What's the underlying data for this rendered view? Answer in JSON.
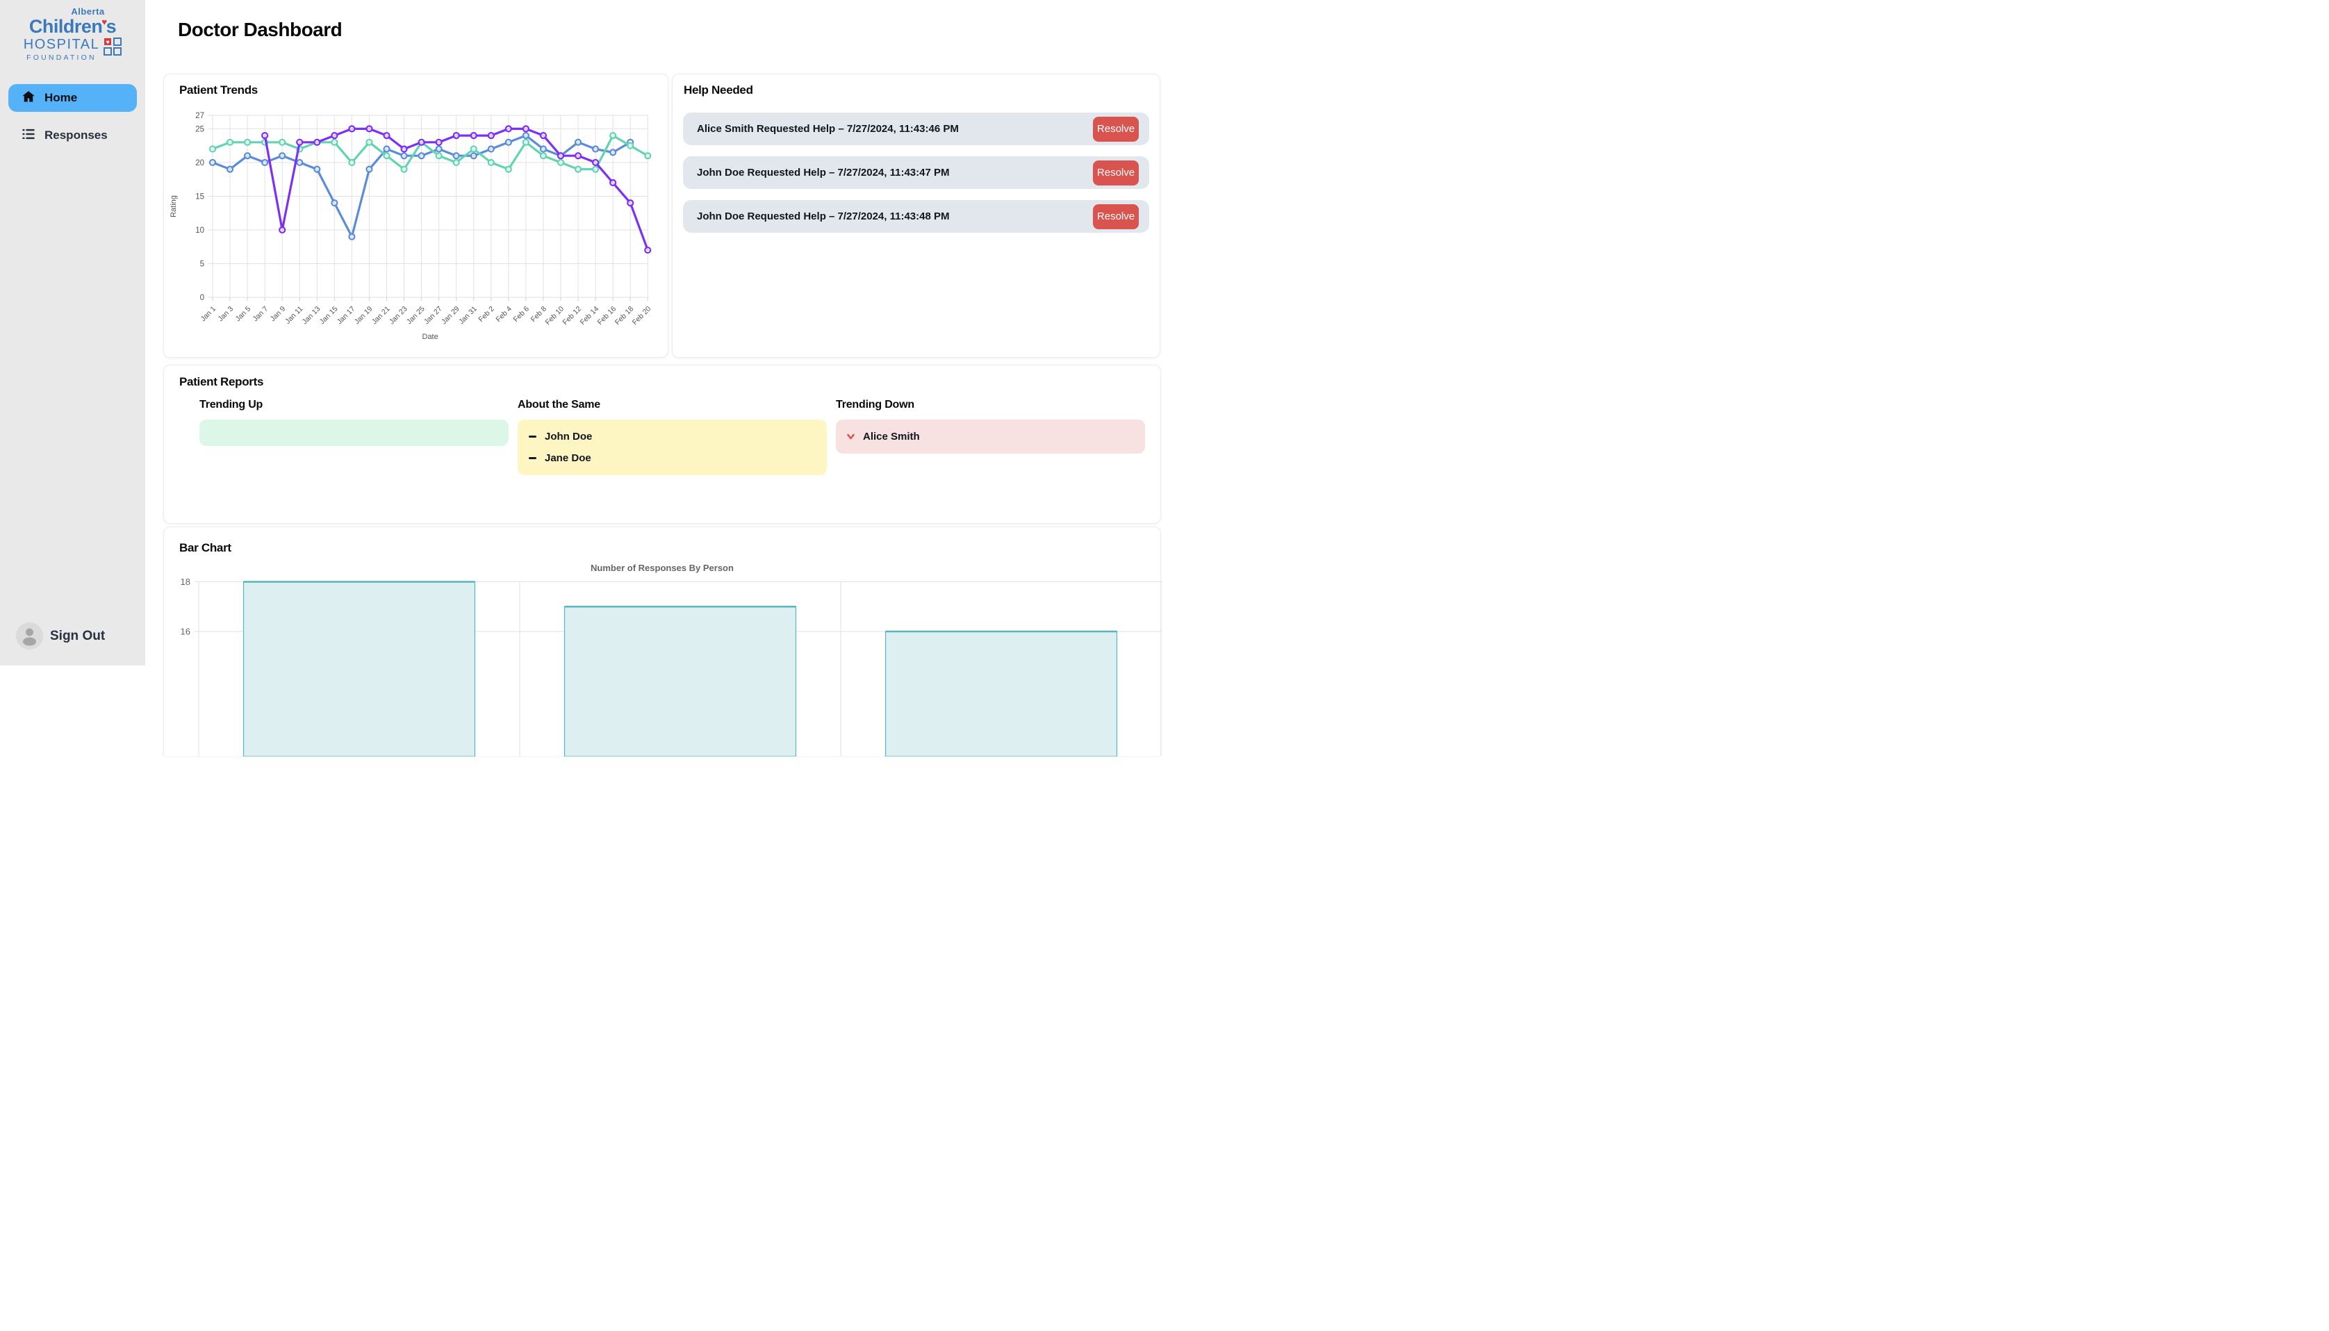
{
  "page": {
    "title": "Doctor Dashboard"
  },
  "sidebar": {
    "logo": {
      "alberta": "Alberta",
      "childrens": "Children's",
      "hospital": "HOSPITAL",
      "foundation": "FOUNDATION"
    },
    "items": [
      {
        "label": "Home",
        "icon": "home-icon",
        "active": true
      },
      {
        "label": "Responses",
        "icon": "list-icon",
        "active": false
      }
    ],
    "sign_out_label": "Sign Out"
  },
  "trends": {
    "heading": "Patient Trends"
  },
  "help": {
    "heading": "Help Needed",
    "resolve_label": "Resolve",
    "requests": [
      {
        "text": "Alice Smith Requested Help – 7/27/2024, 11:43:46 PM"
      },
      {
        "text": "John Doe Requested Help – 7/27/2024, 11:43:47 PM"
      },
      {
        "text": "John Doe Requested Help – 7/27/2024, 11:43:48 PM"
      }
    ]
  },
  "reports": {
    "heading": "Patient Reports",
    "columns": [
      {
        "title": "Trending Up",
        "patients": []
      },
      {
        "title": "About the Same",
        "patients": [
          "John Doe",
          "Jane Doe"
        ]
      },
      {
        "title": "Trending Down",
        "patients": [
          "Alice Smith"
        ]
      }
    ]
  },
  "bar_section": {
    "heading": "Bar Chart"
  },
  "chart_data": [
    {
      "type": "line",
      "title": "Patient Trends",
      "xlabel": "Date",
      "ylabel": "Rating",
      "ylim": [
        0,
        27
      ],
      "yticks": [
        0,
        5,
        10,
        15,
        20,
        25,
        27
      ],
      "grid": true,
      "legend": "none",
      "x": [
        "Jan 1",
        "Jan 3",
        "Jan 5",
        "Jan 7",
        "Jan 9",
        "Jan 11",
        "Jan 13",
        "Jan 15",
        "Jan 17",
        "Jan 19",
        "Jan 21",
        "Jan 23",
        "Jan 25",
        "Jan 27",
        "Jan 29",
        "Jan 31",
        "Feb 2",
        "Feb 4",
        "Feb 6",
        "Feb 8",
        "Feb 10",
        "Feb 12",
        "Feb 14",
        "Feb 16",
        "Feb 18",
        "Feb 20"
      ],
      "series": [
        {
          "name": "series-blue",
          "color": "#5b8cd9",
          "values": [
            20,
            19,
            21,
            20,
            21,
            20,
            19,
            14,
            9,
            19,
            22,
            21,
            21,
            22,
            21,
            21,
            22,
            23,
            24,
            22,
            21,
            23,
            22,
            21.5,
            23,
            null
          ]
        },
        {
          "name": "series-green",
          "color": "#63d4b1",
          "values": [
            22,
            23,
            23,
            23,
            23,
            22,
            23,
            23,
            20,
            23,
            21,
            19,
            23,
            21,
            20,
            22,
            20,
            19,
            23,
            21,
            20,
            19,
            19,
            24,
            22.5,
            21
          ]
        },
        {
          "name": "series-purple",
          "color": "#7b2ff7",
          "values": [
            null,
            null,
            null,
            24,
            10,
            23,
            23,
            24,
            25,
            25,
            24,
            22,
            23,
            23,
            24,
            24,
            24,
            25,
            25,
            24,
            21,
            21,
            20,
            17,
            14,
            7
          ]
        }
      ]
    },
    {
      "type": "bar",
      "title": "Number of Responses By Person",
      "categories": [
        "",
        "",
        ""
      ],
      "values": [
        18,
        17,
        16
      ],
      "yticks_visible": [
        18,
        16
      ],
      "ylabel": "",
      "xlabel": "",
      "note": "x-axis labels cut off below viewport",
      "bar_fill": "#ddeff1",
      "bar_border": "#56b5bf"
    }
  ],
  "colors": {
    "sidebar_bg": "#e9e9e9",
    "active_item_blue": "#55b2f8",
    "logo_blue": "#3b79bd",
    "logo_red": "#d5393f",
    "help_row_bg": "#e2e7ee",
    "resolve_red": "#d9534f",
    "trending_up_bg": "#dcf7e7",
    "about_same_bg": "#fdf6c3",
    "trending_down_bg": "#f8e1e1",
    "line_blue": "#5b8cd9",
    "line_green": "#63d4b1",
    "line_purple": "#7b2ff7",
    "grid_gray": "#e2e2e2"
  }
}
